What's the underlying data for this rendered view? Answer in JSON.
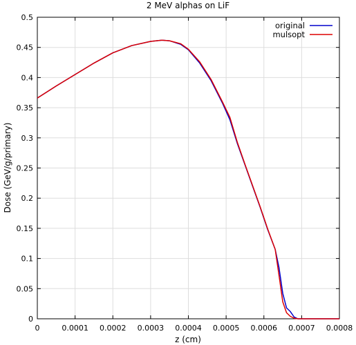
{
  "chart_data": {
    "type": "line",
    "title": "2 MeV alphas on LiF",
    "xlabel": "z (cm)",
    "ylabel": "Dose (GeV/g/primary)",
    "xlim": [
      0,
      0.0008
    ],
    "ylim": [
      0,
      0.5
    ],
    "x_ticks": [
      "0",
      "0.0001",
      "0.0002",
      "0.0003",
      "0.0004",
      "0.0005",
      "0.0006",
      "0.0007",
      "0.0008"
    ],
    "x_tick_values": [
      0,
      0.0001,
      0.0002,
      0.0003,
      0.0004,
      0.0005,
      0.0006,
      0.0007,
      0.0008
    ],
    "y_ticks": [
      "0",
      "0.05",
      "0.1",
      "0.15",
      "0.2",
      "0.25",
      "0.3",
      "0.35",
      "0.4",
      "0.45",
      "0.5"
    ],
    "y_tick_values": [
      0,
      0.05,
      0.1,
      0.15,
      0.2,
      0.25,
      0.3,
      0.35,
      0.4,
      0.45,
      0.5
    ],
    "grid": true,
    "legend_position": "top-right",
    "series": [
      {
        "name": "original",
        "color": "#0000cc",
        "x": [
          0,
          5e-05,
          0.0001,
          0.00015,
          0.0002,
          0.00025,
          0.0003,
          0.00033,
          0.00035,
          0.00038,
          0.0004,
          0.00043,
          0.00046,
          0.00049,
          0.00051,
          0.00053,
          0.00055,
          0.00057,
          0.00059,
          0.00061,
          0.00063,
          0.00064,
          0.00065,
          0.00066,
          0.00067,
          0.00068,
          0.00069,
          0.0007,
          0.0008
        ],
        "y": [
          0.366,
          0.386,
          0.405,
          0.424,
          0.441,
          0.453,
          0.46,
          0.462,
          0.461,
          0.455,
          0.446,
          0.424,
          0.395,
          0.358,
          0.33,
          0.29,
          0.255,
          0.22,
          0.185,
          0.148,
          0.115,
          0.085,
          0.042,
          0.018,
          0.012,
          0.003,
          0.0,
          0.0,
          0.0
        ]
      },
      {
        "name": "mulsopt",
        "color": "#dd0000",
        "x": [
          0,
          5e-05,
          0.0001,
          0.00015,
          0.0002,
          0.00025,
          0.0003,
          0.00033,
          0.00035,
          0.00038,
          0.0004,
          0.00043,
          0.00046,
          0.00049,
          0.00051,
          0.00053,
          0.00055,
          0.00057,
          0.00059,
          0.00061,
          0.00063,
          0.00064,
          0.00065,
          0.00066,
          0.00067,
          0.00068,
          0.00069,
          0.0007,
          0.0008
        ],
        "y": [
          0.366,
          0.386,
          0.405,
          0.424,
          0.441,
          0.453,
          0.46,
          0.462,
          0.461,
          0.456,
          0.447,
          0.426,
          0.397,
          0.36,
          0.334,
          0.292,
          0.256,
          0.221,
          0.186,
          0.149,
          0.115,
          0.072,
          0.028,
          0.01,
          0.004,
          0.001,
          0.0,
          0.0,
          0.0
        ]
      }
    ]
  }
}
